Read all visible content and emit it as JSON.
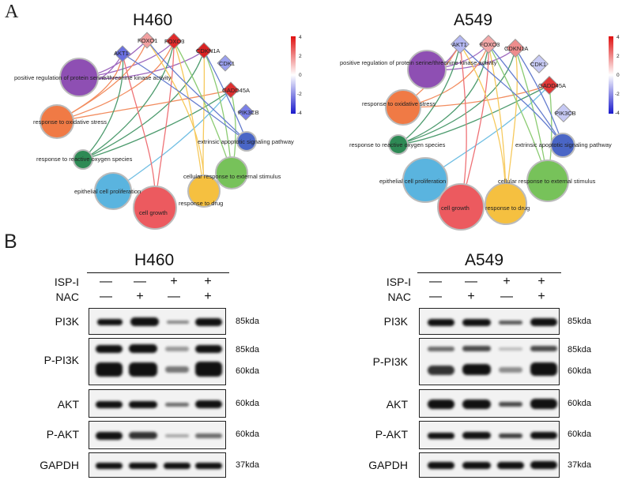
{
  "panel_a": {
    "letter": "A",
    "scale_ticks": [
      "4",
      "2",
      "0",
      "-2",
      "-4"
    ],
    "networks": [
      {
        "title": "H460",
        "genes": [
          {
            "name": "AKT1",
            "color": "#6a6fe0"
          },
          {
            "name": "FOXO1",
            "color": "#f2a0a0"
          },
          {
            "name": "FOXO3",
            "color": "#e02a2a"
          },
          {
            "name": "CDKN1A",
            "color": "#d92222"
          },
          {
            "name": "CDK1",
            "color": "#9aa0ee"
          },
          {
            "name": "GADD45A",
            "color": "#dd3030"
          },
          {
            "name": "PIK3CB",
            "color": "#7a80e8"
          }
        ],
        "terms": [
          {
            "name": "positive regulation of protein serine/threonine kinase activity",
            "color": "#8e4fb3"
          },
          {
            "name": "response to oxidative stress",
            "color": "#f07a45"
          },
          {
            "name": "response to reactive oxygen species",
            "color": "#2e8a55"
          },
          {
            "name": "epithelial cell proliferation",
            "color": "#5ab4df"
          },
          {
            "name": "cell growth",
            "color": "#ec5a5f"
          },
          {
            "name": "response to drug",
            "color": "#f5c040"
          },
          {
            "name": "cellular response to external stimulus",
            "color": "#77c25a"
          },
          {
            "name": "extrinsic apoptotic signaling pathway",
            "color": "#4a66c6"
          }
        ]
      },
      {
        "title": "A549",
        "genes": [
          {
            "name": "AKT1",
            "color": "#b4b8f2"
          },
          {
            "name": "FOXO3",
            "color": "#f3a8a8"
          },
          {
            "name": "CDKN1A",
            "color": "#ee8c8c"
          },
          {
            "name": "CDK1",
            "color": "#c8cbf5"
          },
          {
            "name": "GADD45A",
            "color": "#e23838"
          },
          {
            "name": "PIK3CB",
            "color": "#c6c9f4"
          }
        ],
        "terms": [
          {
            "name": "positive regulation of protein serine/threonine kinase activity",
            "color": "#8e4fb3"
          },
          {
            "name": "response to oxidative stress",
            "color": "#f07a45"
          },
          {
            "name": "response to reactive oxygen species",
            "color": "#2e8a55"
          },
          {
            "name": "epithelial cell proliferation",
            "color": "#5ab4df"
          },
          {
            "name": "cell growth",
            "color": "#ec5a5f"
          },
          {
            "name": "response to drug",
            "color": "#f5c040"
          },
          {
            "name": "cellular response to external stimulus",
            "color": "#77c25a"
          },
          {
            "name": "extrinsic apoptotic signaling pathway",
            "color": "#4a66c6"
          }
        ]
      }
    ]
  },
  "panel_b": {
    "letter": "B",
    "treatment_labels": [
      "ISP-I",
      "NAC"
    ],
    "treatments": [
      {
        "isp": "—",
        "nac": "—"
      },
      {
        "isp": "—",
        "nac": "+"
      },
      {
        "isp": "+",
        "nac": "—"
      },
      {
        "isp": "+",
        "nac": "+"
      }
    ],
    "blots": [
      {
        "title": "H460",
        "rows": [
          {
            "label": "PI3K",
            "kda": [
              "85kda"
            ]
          },
          {
            "label": "P-PI3K",
            "kda": [
              "85kda",
              "60kda"
            ]
          },
          {
            "label": "AKT",
            "kda": [
              "60kda"
            ]
          },
          {
            "label": "P-AKT",
            "kda": [
              "60kda"
            ]
          },
          {
            "label": "GAPDH",
            "kda": [
              "37kda"
            ]
          }
        ]
      },
      {
        "title": "A549",
        "rows": [
          {
            "label": "PI3K",
            "kda": [
              "85kda"
            ]
          },
          {
            "label": "P-PI3K",
            "kda": [
              "85kda",
              "60kda"
            ]
          },
          {
            "label": "AKT",
            "kda": [
              "60kda"
            ]
          },
          {
            "label": "P-AKT",
            "kda": [
              "60kda"
            ]
          },
          {
            "label": "GAPDH",
            "kda": [
              "37kda"
            ]
          }
        ]
      }
    ]
  }
}
